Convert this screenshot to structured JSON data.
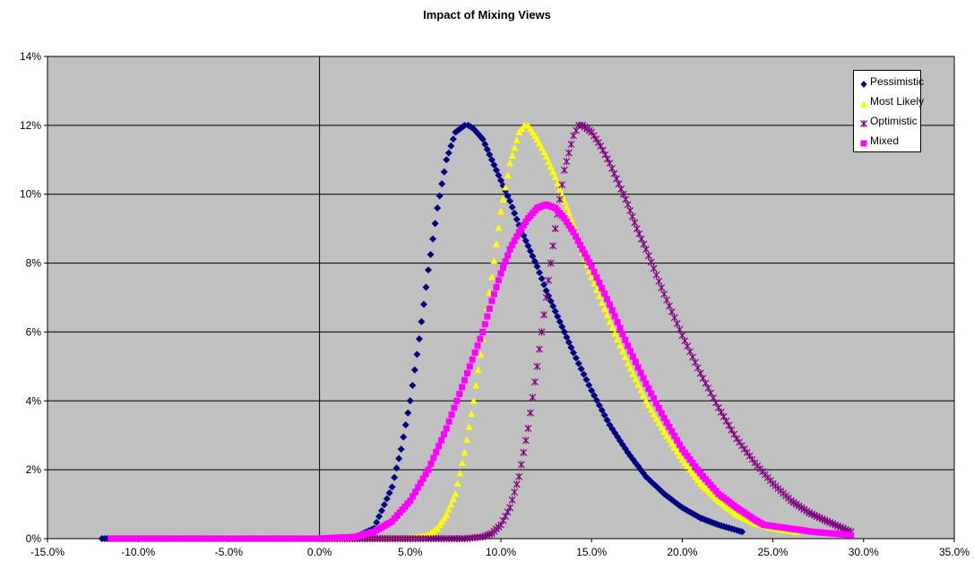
{
  "chart_data": {
    "type": "scatter",
    "title": "Impact of Mixing Views",
    "xlim": [
      -15.0,
      35.0
    ],
    "ylim": [
      0,
      14
    ],
    "x_unit": "%",
    "y_unit": "%",
    "x_ticks": [
      "-15.0%",
      "-10.0%",
      "-5.0%",
      "0.0%",
      "5.0%",
      "10.0%",
      "15.0%",
      "20.0%",
      "25.0%",
      "30.0%",
      "35.0%"
    ],
    "y_ticks": [
      "0%",
      "2%",
      "4%",
      "6%",
      "8%",
      "10%",
      "12%",
      "14%"
    ],
    "grid": "horizontal",
    "legend_position": "top-right",
    "series": [
      {
        "name": "Pessimistic",
        "marker": "diamond",
        "color": "#000080",
        "x": [
          -12.0,
          -9.5,
          -8.0,
          -6.0,
          -4.0,
          -2.0,
          0.0,
          2.0,
          3.0,
          4.0,
          4.5,
          5.0,
          5.5,
          6.0,
          6.5,
          7.0,
          7.5,
          8.0,
          8.2,
          8.5,
          9.0,
          9.5,
          10.0,
          10.5,
          11.0,
          11.5,
          12.0,
          12.5,
          13.0,
          13.5,
          14.0,
          15.0,
          16.0,
          17.0,
          18.0,
          19.0,
          20.0,
          21.0,
          21.5,
          22.0,
          23.3
        ],
        "y": [
          0.0,
          0.0,
          0.0,
          0.0,
          0.0,
          0.0,
          0.0,
          0.05,
          0.3,
          1.5,
          2.6,
          4.0,
          5.8,
          7.8,
          9.6,
          11.0,
          11.8,
          12.0,
          12.0,
          11.9,
          11.6,
          11.0,
          10.4,
          9.8,
          9.1,
          8.5,
          7.9,
          7.2,
          6.6,
          6.0,
          5.4,
          4.3,
          3.3,
          2.5,
          1.8,
          1.3,
          0.9,
          0.6,
          0.5,
          0.4,
          0.2
        ]
      },
      {
        "name": "Most Likely",
        "marker": "triangle",
        "color": "#ffff00",
        "x": [
          -8.5,
          -5.0,
          0.0,
          4.0,
          5.0,
          6.0,
          6.5,
          7.0,
          7.5,
          8.0,
          8.5,
          9.0,
          9.5,
          10.0,
          10.5,
          11.0,
          11.3,
          11.5,
          12.0,
          12.5,
          13.0,
          13.5,
          14.0,
          14.5,
          15.0,
          16.0,
          17.0,
          18.0,
          19.0,
          20.0,
          21.0,
          22.0,
          23.0,
          24.0,
          25.0,
          26.3
        ],
        "y": [
          0.0,
          0.0,
          0.0,
          0.0,
          0.03,
          0.1,
          0.3,
          0.7,
          1.3,
          2.5,
          4.0,
          5.8,
          7.6,
          9.5,
          10.9,
          11.8,
          12.0,
          12.0,
          11.6,
          11.1,
          10.5,
          9.8,
          9.1,
          8.3,
          7.6,
          6.3,
          5.1,
          4.0,
          3.1,
          2.3,
          1.6,
          1.1,
          0.7,
          0.45,
          0.3,
          0.2
        ]
      },
      {
        "name": "Optimistic",
        "marker": "asterisk",
        "color": "#800080",
        "x": [
          0.0,
          5.0,
          8.0,
          9.0,
          9.5,
          10.0,
          10.5,
          11.0,
          11.5,
          12.0,
          12.5,
          13.0,
          13.5,
          14.0,
          14.3,
          14.5,
          15.0,
          15.5,
          16.0,
          16.5,
          17.0,
          17.5,
          18.0,
          19.0,
          20.0,
          21.0,
          22.0,
          23.0,
          24.0,
          25.0,
          26.0,
          27.0,
          28.0,
          29.3
        ],
        "y": [
          0.0,
          0.0,
          0.0,
          0.05,
          0.15,
          0.4,
          0.9,
          1.8,
          3.2,
          5.0,
          7.0,
          9.0,
          10.7,
          11.7,
          12.0,
          12.0,
          11.8,
          11.4,
          10.9,
          10.3,
          9.7,
          9.0,
          8.4,
          7.1,
          5.9,
          4.8,
          3.8,
          2.9,
          2.2,
          1.6,
          1.1,
          0.75,
          0.5,
          0.2
        ]
      },
      {
        "name": "Mixed",
        "marker": "square",
        "color": "#ff00ff",
        "x": [
          -11.5,
          -9.5,
          -7.0,
          -4.5,
          -2.0,
          0.0,
          2.0,
          3.0,
          4.0,
          5.0,
          6.0,
          7.0,
          8.0,
          9.0,
          9.5,
          10.0,
          10.5,
          11.0,
          11.5,
          12.0,
          12.5,
          13.0,
          13.5,
          14.0,
          14.5,
          15.0,
          16.0,
          17.0,
          18.0,
          19.0,
          20.0,
          21.0,
          22.0,
          23.0,
          24.0,
          24.5,
          27.2,
          29.3
        ],
        "y": [
          0.0,
          0.0,
          0.0,
          0.0,
          0.0,
          0.0,
          0.05,
          0.2,
          0.5,
          1.1,
          2.0,
          3.2,
          4.6,
          6.0,
          6.9,
          7.7,
          8.4,
          8.9,
          9.3,
          9.6,
          9.7,
          9.6,
          9.3,
          8.9,
          8.4,
          7.9,
          6.8,
          5.6,
          4.5,
          3.5,
          2.6,
          1.9,
          1.3,
          0.9,
          0.55,
          0.4,
          0.2,
          0.1
        ]
      }
    ]
  },
  "legend": {
    "items": [
      {
        "label": "Pessimistic",
        "marker": "diamond",
        "color": "#000080"
      },
      {
        "label": "Most Likely",
        "marker": "triangle",
        "color": "#ffff00"
      },
      {
        "label": "Optimistic",
        "marker": "asterisk",
        "color": "#800080"
      },
      {
        "label": "Mixed",
        "marker": "square",
        "color": "#ff00ff"
      }
    ]
  },
  "colors": {
    "plot_background": "#c0c0c0",
    "grid": "#000000",
    "axis": "#000000"
  }
}
